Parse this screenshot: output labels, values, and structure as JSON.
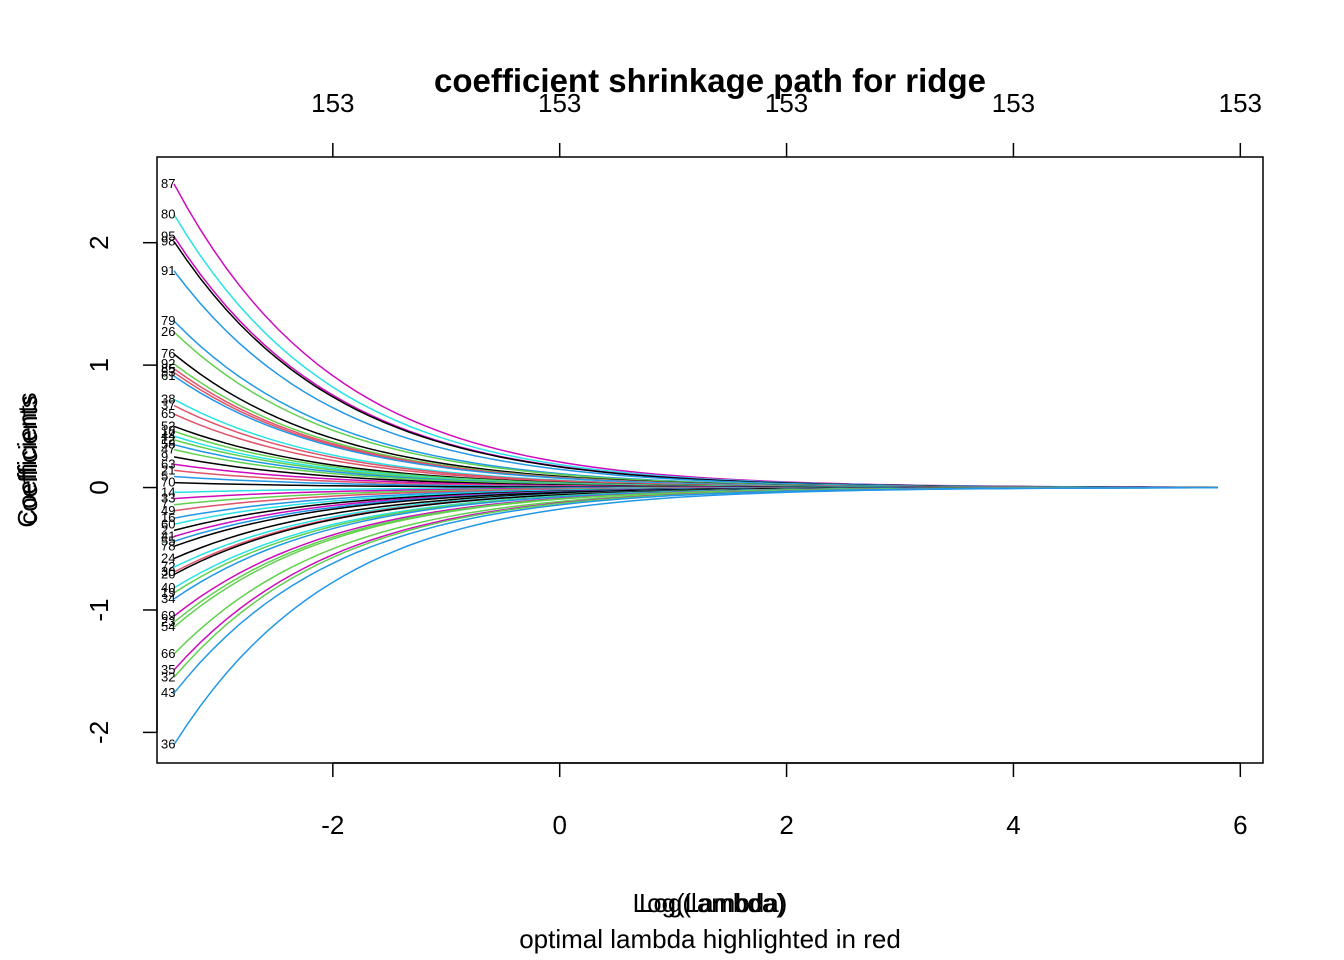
{
  "chart_data": {
    "type": "line",
    "title": "coefficient shrinkage path for ridge",
    "xlabel": "Log(Lambda)",
    "xlabel_overprint": "Log(lambda)",
    "ylabel": "Coefficients",
    "ylabel_overprint": "coefficients",
    "subtitle": "optimal lambda highlighted in red",
    "xlim": [
      -3.55,
      6.2
    ],
    "ylim": [
      -2.25,
      2.7
    ],
    "x_ticks": [
      -2,
      0,
      2,
      4,
      6
    ],
    "x_tick_labels": [
      "-2",
      "0",
      "2",
      "4",
      "6"
    ],
    "y_ticks": [
      -2,
      -1,
      0,
      1,
      2
    ],
    "y_tick_labels": [
      "-2",
      "-1",
      "0",
      "1",
      "2"
    ],
    "top_ticks": [
      -2,
      0,
      2,
      4,
      6
    ],
    "top_tick_labels": [
      "153",
      "153",
      "153",
      "153",
      "153"
    ],
    "x_range": [
      -3.4,
      5.8
    ],
    "palette": [
      "#000000",
      "#DF536B",
      "#61D04F",
      "#2297E6",
      "#28E2E5",
      "#CD0BBC",
      "#F5C710",
      "#9E9E9E"
    ],
    "grid": false,
    "legend": "none",
    "series": [
      {
        "label": "87",
        "start": 2.48,
        "color": "#CD0BBC"
      },
      {
        "label": "80",
        "start": 2.23,
        "color": "#28E2E5"
      },
      {
        "label": "95",
        "start": 2.05,
        "color": "#CD0BBC"
      },
      {
        "label": "98",
        "start": 2.01,
        "color": "#000000"
      },
      {
        "label": "91",
        "start": 1.77,
        "color": "#2297E6"
      },
      {
        "label": "79",
        "start": 1.36,
        "color": "#2297E6"
      },
      {
        "label": "26",
        "start": 1.27,
        "color": "#61D04F"
      },
      {
        "label": "76",
        "start": 1.09,
        "color": "#000000"
      },
      {
        "label": "92",
        "start": 1.01,
        "color": "#61D04F"
      },
      {
        "label": "85",
        "start": 0.97,
        "color": "#DF536B"
      },
      {
        "label": "53",
        "start": 0.94,
        "color": "#DF536B"
      },
      {
        "label": "61",
        "start": 0.91,
        "color": "#2297E6"
      },
      {
        "label": "38",
        "start": 0.72,
        "color": "#28E2E5"
      },
      {
        "label": "37",
        "start": 0.67,
        "color": "#DF536B"
      },
      {
        "label": "65",
        "start": 0.6,
        "color": "#DF536B"
      },
      {
        "label": "52",
        "start": 0.5,
        "color": "#000000"
      },
      {
        "label": "18",
        "start": 0.46,
        "color": "#61D04F"
      },
      {
        "label": "44",
        "start": 0.42,
        "color": "#28E2E5"
      },
      {
        "label": "12",
        "start": 0.39,
        "color": "#61D04F"
      },
      {
        "label": "58",
        "start": 0.35,
        "color": "#2297E6"
      },
      {
        "label": "47",
        "start": 0.31,
        "color": "#61D04F"
      },
      {
        "label": "9",
        "start": 0.25,
        "color": "#000000"
      },
      {
        "label": "63",
        "start": 0.19,
        "color": "#CD0BBC"
      },
      {
        "label": "21",
        "start": 0.14,
        "color": "#DF536B"
      },
      {
        "label": "5",
        "start": 0.09,
        "color": "#2297E6"
      },
      {
        "label": "70",
        "start": 0.04,
        "color": "#000000"
      },
      {
        "label": "14",
        "start": -0.04,
        "color": "#28E2E5"
      },
      {
        "label": "33",
        "start": -0.09,
        "color": "#CD0BBC"
      },
      {
        "label": "7",
        "start": -0.14,
        "color": "#61D04F"
      },
      {
        "label": "49",
        "start": -0.19,
        "color": "#DF536B"
      },
      {
        "label": "16",
        "start": -0.25,
        "color": "#2297E6"
      },
      {
        "label": "60",
        "start": -0.3,
        "color": "#28E2E5"
      },
      {
        "label": "2",
        "start": -0.35,
        "color": "#000000"
      },
      {
        "label": "41",
        "start": -0.4,
        "color": "#CD0BBC"
      },
      {
        "label": "55",
        "start": -0.44,
        "color": "#2297E6"
      },
      {
        "label": "78",
        "start": -0.48,
        "color": "#000000"
      },
      {
        "label": "24",
        "start": -0.58,
        "color": "#000000"
      },
      {
        "label": "72",
        "start": -0.65,
        "color": "#28E2E5"
      },
      {
        "label": "30",
        "start": -0.69,
        "color": "#DF536B"
      },
      {
        "label": "20",
        "start": -0.71,
        "color": "#000000"
      },
      {
        "label": "40",
        "start": -0.82,
        "color": "#28E2E5"
      },
      {
        "label": "19",
        "start": -0.86,
        "color": "#61D04F"
      },
      {
        "label": "34",
        "start": -0.91,
        "color": "#2297E6"
      },
      {
        "label": "69",
        "start": -1.05,
        "color": "#CD0BBC"
      },
      {
        "label": "23",
        "start": -1.1,
        "color": "#61D04F"
      },
      {
        "label": "54",
        "start": -1.14,
        "color": "#61D04F"
      },
      {
        "label": "66",
        "start": -1.36,
        "color": "#61D04F"
      },
      {
        "label": "35",
        "start": -1.49,
        "color": "#CD0BBC"
      },
      {
        "label": "32",
        "start": -1.55,
        "color": "#61D04F"
      },
      {
        "label": "43",
        "start": -1.68,
        "color": "#2297E6"
      },
      {
        "label": "36",
        "start": -2.1,
        "color": "#2297E6"
      }
    ]
  }
}
